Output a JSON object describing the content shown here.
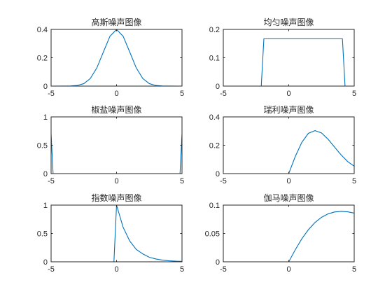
{
  "figure": {
    "background": "#ffffff",
    "line_color": "#0072bd",
    "axis_color": "#262626"
  },
  "chart_data": [
    {
      "type": "line",
      "title": "高斯噪声图像",
      "xlim": [
        -5,
        5
      ],
      "ylim": [
        0,
        0.4
      ],
      "xticks": [
        -5,
        0,
        5
      ],
      "xtick_labels": [
        "-5",
        "0",
        "5"
      ],
      "yticks": [
        0,
        0.2,
        0.4
      ],
      "ytick_labels": [
        "0",
        "0.2",
        "0.4"
      ],
      "x": [
        -5,
        -4,
        -3.5,
        -3,
        -2.5,
        -2,
        -1.5,
        -1,
        -0.5,
        0,
        0.5,
        1,
        1.5,
        2,
        2.5,
        3,
        3.5,
        4,
        5
      ],
      "y": [
        0,
        0.0001,
        0.0009,
        0.0044,
        0.0175,
        0.054,
        0.1295,
        0.242,
        0.352,
        0.399,
        0.352,
        0.242,
        0.1295,
        0.054,
        0.0175,
        0.0044,
        0.0009,
        0.0001,
        0
      ]
    },
    {
      "type": "line",
      "title": "均匀噪声图像",
      "xlim": [
        -5,
        5
      ],
      "ylim": [
        0,
        0.2
      ],
      "xticks": [
        -5,
        0,
        5
      ],
      "xtick_labels": [
        "-5",
        "0",
        "5"
      ],
      "yticks": [
        0,
        0.1,
        0.2
      ],
      "ytick_labels": [
        "0",
        "0.1",
        "0.2"
      ],
      "x": [
        -5,
        -2.1,
        -1.9,
        4.1,
        4.3,
        5
      ],
      "y": [
        0,
        0,
        0.167,
        0.167,
        0,
        0
      ]
    },
    {
      "type": "line",
      "title": "椒盐噪声图像",
      "xlim": [
        -5,
        5
      ],
      "ylim": [
        0,
        1
      ],
      "xticks": [
        -5,
        0,
        5
      ],
      "xtick_labels": [
        "-5",
        "0",
        "5"
      ],
      "yticks": [
        0,
        0.5,
        1
      ],
      "ytick_labels": [
        "0",
        "0.5",
        "1"
      ],
      "x": [
        -5,
        -4.85,
        4.85,
        5
      ],
      "y": [
        0.7,
        0,
        0,
        0.7
      ]
    },
    {
      "type": "line",
      "title": "瑞利噪声图像",
      "xlim": [
        -5,
        5
      ],
      "ylim": [
        0,
        0.4
      ],
      "xticks": [
        -5,
        0,
        5
      ],
      "xtick_labels": [
        "-5",
        "0",
        "5"
      ],
      "yticks": [
        0,
        0.2,
        0.4
      ],
      "ytick_labels": [
        "0",
        "0.2",
        "0.4"
      ],
      "x": [
        -5,
        0,
        0.5,
        1,
        1.5,
        2,
        2.5,
        3,
        3.5,
        4,
        4.5,
        5
      ],
      "y": [
        0,
        0,
        0.121,
        0.221,
        0.284,
        0.303,
        0.287,
        0.243,
        0.187,
        0.132,
        0.085,
        0.052
      ]
    },
    {
      "type": "line",
      "title": "指数噪声图像",
      "xlim": [
        -5,
        5
      ],
      "ylim": [
        0,
        1
      ],
      "xticks": [
        -5,
        0,
        5
      ],
      "xtick_labels": [
        "-5",
        "0",
        "5"
      ],
      "yticks": [
        0,
        0.5,
        1
      ],
      "ytick_labels": [
        "0",
        "0.5",
        "1"
      ],
      "x": [
        -5,
        -0.2,
        0,
        0.5,
        1,
        1.5,
        2,
        2.5,
        3,
        3.5,
        4,
        4.5,
        5
      ],
      "y": [
        0,
        0,
        1,
        0.61,
        0.37,
        0.22,
        0.14,
        0.08,
        0.05,
        0.03,
        0.018,
        0.011,
        0.007
      ]
    },
    {
      "type": "line",
      "title": "伽马噪声图像",
      "xlim": [
        -5,
        5
      ],
      "ylim": [
        0,
        0.1
      ],
      "xticks": [
        -5,
        0,
        5
      ],
      "xtick_labels": [
        "-5",
        "0",
        "5"
      ],
      "yticks": [
        0,
        0.05,
        0.1
      ],
      "ytick_labels": [
        "0",
        "0.05",
        "0.1"
      ],
      "x": [
        -5,
        0,
        0.5,
        1,
        1.5,
        2,
        2.5,
        3,
        3.5,
        4,
        4.5,
        5
      ],
      "y": [
        0,
        0,
        0.0213,
        0.0406,
        0.0566,
        0.0692,
        0.0784,
        0.0845,
        0.0879,
        0.089,
        0.0882,
        0.0859
      ]
    }
  ]
}
